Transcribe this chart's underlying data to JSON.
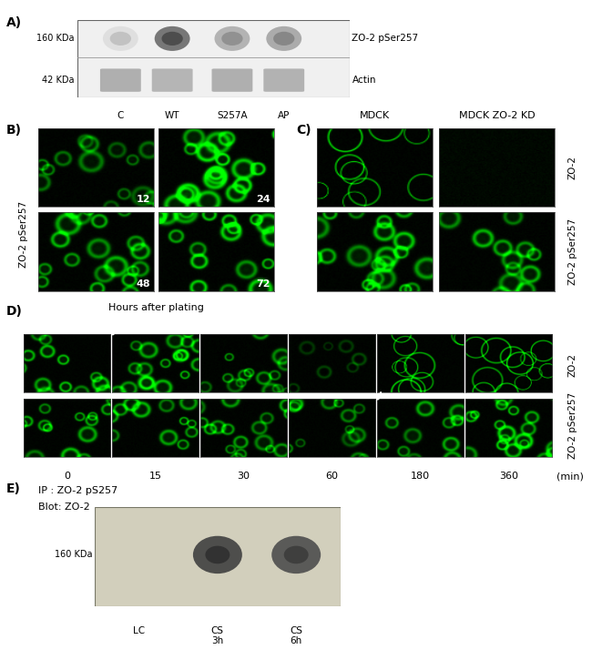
{
  "figure_bg": "#ffffff",
  "panel_A": {
    "label": "A)",
    "kda_160": "160 KDa",
    "kda_42": "42 KDa",
    "label_zo2": "ZO-2 pSer257",
    "label_actin": "Actin",
    "columns": [
      "C",
      "WT",
      "S257A",
      "AP"
    ]
  },
  "panel_B": {
    "label": "B)",
    "ylabel": "ZO-2 pSer257",
    "xlabel": "Hours after plating",
    "times": [
      "12",
      "24",
      "48",
      "72"
    ]
  },
  "panel_C": {
    "label": "C)",
    "col_labels": [
      "MDCK",
      "MDCK ZO-2 KD"
    ],
    "row_labels": [
      "ZO-2",
      "ZO-2 pSer257"
    ]
  },
  "panel_D": {
    "label": "D)",
    "timepoints": [
      "0",
      "15",
      "30",
      "60",
      "180",
      "360"
    ],
    "time_unit": "(min)",
    "row_labels": [
      "ZO-2",
      "ZO-2 pSer257"
    ]
  },
  "panel_E": {
    "label": "E)",
    "ip_label": "IP : ZO-2 pS257",
    "blot_label": "Blot: ZO-2",
    "kda_label": "160 KDa",
    "columns": [
      "LC",
      "CS\n3h",
      "CS\n6h"
    ]
  }
}
